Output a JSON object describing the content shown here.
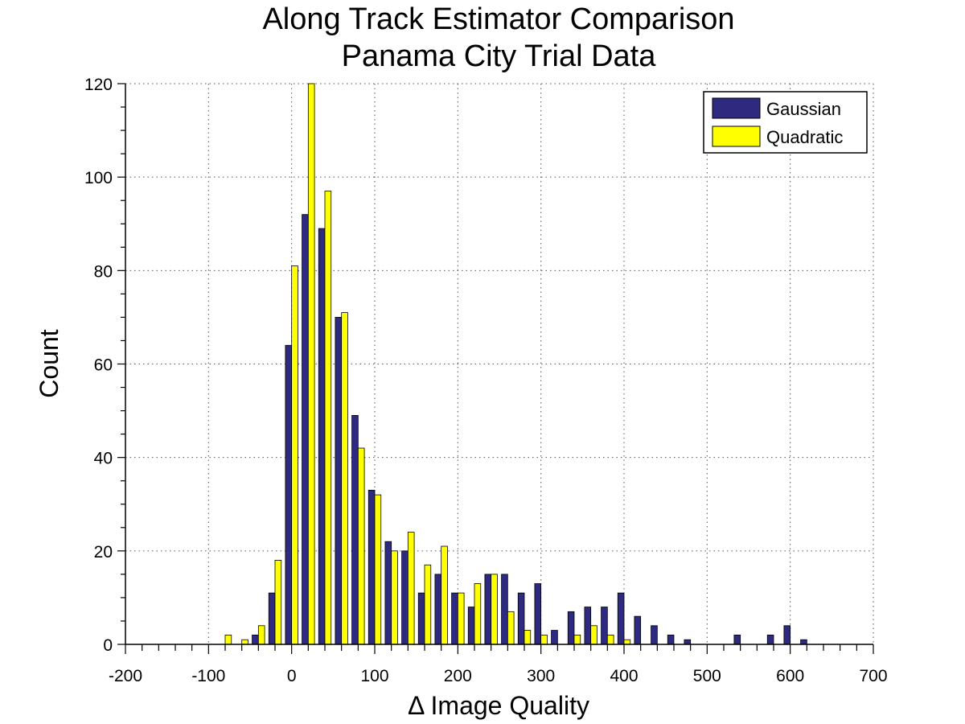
{
  "chart_data": {
    "type": "bar",
    "title": [
      "Along Track Estimator Comparison",
      "Panama City Trial Data"
    ],
    "xlabel": "Δ Image Quality",
    "ylabel": "Count",
    "xlim": [
      -200,
      700
    ],
    "ylim": [
      0,
      120
    ],
    "xticks": [
      -200,
      -100,
      0,
      100,
      200,
      300,
      400,
      500,
      600,
      700
    ],
    "yticks": [
      0,
      20,
      40,
      60,
      80,
      100,
      120
    ],
    "grid": true,
    "legend_position": "top-right",
    "x": [
      -80,
      -60,
      -40,
      -20,
      0,
      20,
      40,
      60,
      80,
      100,
      120,
      140,
      160,
      180,
      200,
      220,
      240,
      260,
      280,
      300,
      320,
      340,
      360,
      380,
      400,
      420,
      440,
      460,
      480,
      500,
      520,
      540,
      560,
      580,
      600,
      620
    ],
    "series": [
      {
        "name": "Gaussian",
        "color": "#2e2a7f",
        "values": [
          0,
          0,
          2,
          11,
          64,
          92,
          89,
          70,
          49,
          33,
          22,
          20,
          11,
          15,
          11,
          8,
          15,
          15,
          11,
          13,
          3,
          7,
          8,
          8,
          11,
          6,
          4,
          2,
          1,
          0,
          0,
          2,
          0,
          2,
          4,
          1
        ]
      },
      {
        "name": "Quadratic",
        "color": "#ffff00",
        "values": [
          2,
          1,
          4,
          18,
          81,
          120,
          97,
          71,
          42,
          32,
          20,
          24,
          17,
          21,
          11,
          13,
          15,
          7,
          3,
          2,
          0,
          2,
          4,
          2,
          1,
          0,
          0,
          0,
          0,
          0,
          0,
          0,
          0,
          0,
          0,
          0
        ]
      }
    ]
  }
}
